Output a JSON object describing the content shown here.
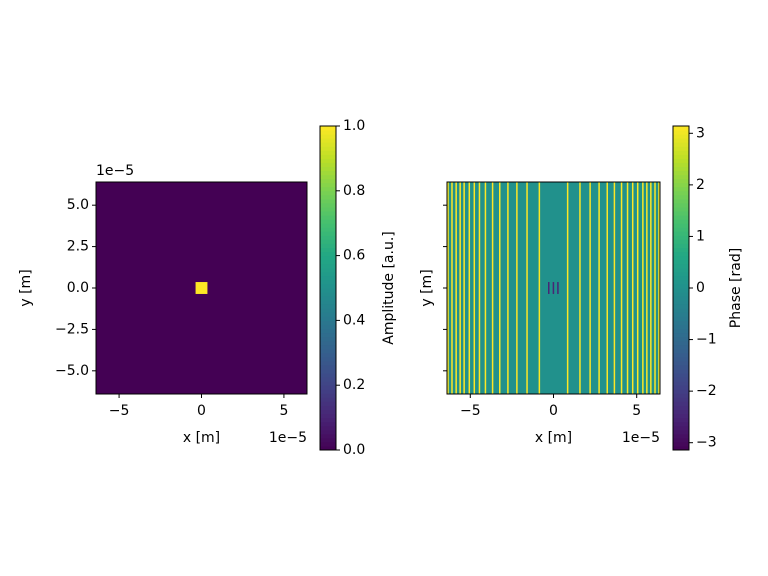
{
  "chart_data": [
    {
      "type": "image",
      "xlabel": "x [m]",
      "ylabel": "y [m]",
      "x_offset_label": "1e−5",
      "y_offset_label": "1e−5",
      "xlim": [
        -6.4e-05,
        6.4e-05
      ],
      "ylim": [
        -6.4e-05,
        6.4e-05
      ],
      "xticks": [
        {
          "value": -5e-05,
          "label": "−5"
        },
        {
          "value": 0,
          "label": "0"
        },
        {
          "value": 5e-05,
          "label": "5"
        }
      ],
      "yticks": [
        {
          "value": -5e-05,
          "label": "−5.0"
        },
        {
          "value": -2.5e-05,
          "label": "−2.5"
        },
        {
          "value": 0,
          "label": "0.0"
        },
        {
          "value": 2.5e-05,
          "label": "2.5"
        },
        {
          "value": 5e-05,
          "label": "5.0"
        }
      ],
      "background": 0,
      "regions": [
        {
          "x": [
            -3.6e-06,
            3.6e-06
          ],
          "y": [
            -3.6e-06,
            3.6e-06
          ],
          "value": 1
        }
      ],
      "colorbar": {
        "label": "Amplitude [a.u.]",
        "colormap": "viridis",
        "lim": [
          0,
          1
        ],
        "ticks": [
          {
            "value": 0,
            "label": "0.0"
          },
          0.2,
          0.4,
          0.6,
          0.8,
          {
            "value": 1,
            "label": "1.0"
          }
        ]
      }
    },
    {
      "type": "image",
      "xlabel": "x [m]",
      "ylabel": "y [m]",
      "x_offset_label": "1e−5",
      "xlim": [
        -6.4e-05,
        6.4e-05
      ],
      "ylim": [
        -6.4e-05,
        6.4e-05
      ],
      "xticks": [
        {
          "value": -5e-05,
          "label": "−5"
        },
        {
          "value": 0,
          "label": "0"
        },
        {
          "value": 5e-05,
          "label": "5"
        }
      ],
      "background": 0,
      "stripes": {
        "x": [
          -6.34e-05,
          -6.1e-05,
          -5.85e-05,
          -5.61e-05,
          -5.37e-05,
          -5.06e-05,
          -4.76e-05,
          -4.45e-05,
          -4.09e-05,
          -3.66e-05,
          -3.23e-05,
          -2.74e-05,
          -2.2e-05,
          -1.59e-05,
          -8.5e-06,
          8.5e-06,
          1.59e-05,
          2.2e-05,
          2.74e-05,
          3.23e-05,
          3.66e-05,
          4.09e-05,
          4.45e-05,
          4.76e-05,
          5.06e-05,
          5.37e-05,
          5.61e-05,
          5.85e-05,
          6.1e-05,
          6.34e-05
        ],
        "values": [
          3.14,
          3.14,
          3.14,
          3.14,
          3.14,
          3.14,
          3.14,
          3.14,
          3.14,
          3.14,
          3.14,
          3.14,
          3.14,
          3.14,
          3.14,
          3.14,
          3.14,
          3.14,
          3.14,
          3.14,
          3.14,
          3.14,
          3.14,
          3.14,
          3.14,
          3.14,
          3.14,
          3.14,
          3.14,
          3.14
        ]
      },
      "regions": [
        {
          "x": [
            -3.3e-06,
            -2.4e-06
          ],
          "y": [
            -3.6e-06,
            3.6e-06
          ],
          "value": -2.5
        },
        {
          "x": [
            -5e-07,
            4e-07
          ],
          "y": [
            -3.6e-06,
            3.6e-06
          ],
          "value": -2.5
        },
        {
          "x": [
            2.2e-06,
            3.1e-06
          ],
          "y": [
            -3.6e-06,
            3.6e-06
          ],
          "value": -2.5
        }
      ],
      "colorbar": {
        "label": "Phase [rad]",
        "colormap": "viridis",
        "lim": [
          -3.14159,
          3.14159
        ],
        "ticks": [
          {
            "value": -3,
            "label": "−3"
          },
          {
            "value": -2,
            "label": "−2"
          },
          {
            "value": -1,
            "label": "−1"
          },
          0,
          1,
          2,
          3
        ]
      }
    }
  ]
}
